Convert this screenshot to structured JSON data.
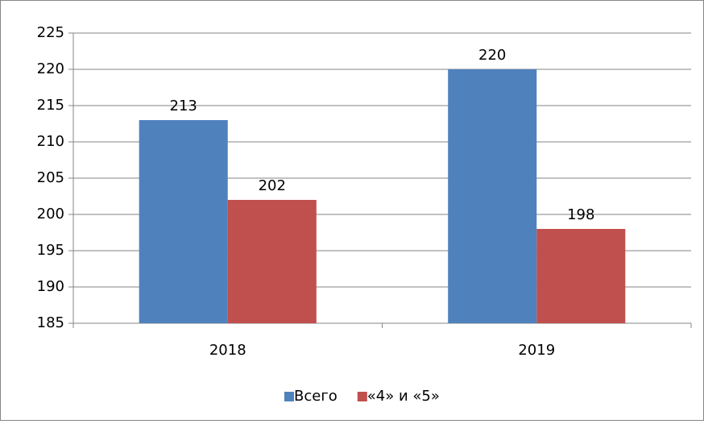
{
  "chart_data": {
    "type": "bar",
    "categories": [
      "2018",
      "2019"
    ],
    "series": [
      {
        "name": "Всего",
        "color": "#4f81bd",
        "values": [
          213,
          220
        ]
      },
      {
        "name": "«4» и «5»",
        "color": "#c0504d",
        "values": [
          202,
          198
        ]
      }
    ],
    "ylim": [
      185,
      225
    ],
    "yticks": [
      185,
      190,
      195,
      200,
      205,
      210,
      215,
      220,
      225
    ],
    "grid": true,
    "legend": "bottom"
  }
}
